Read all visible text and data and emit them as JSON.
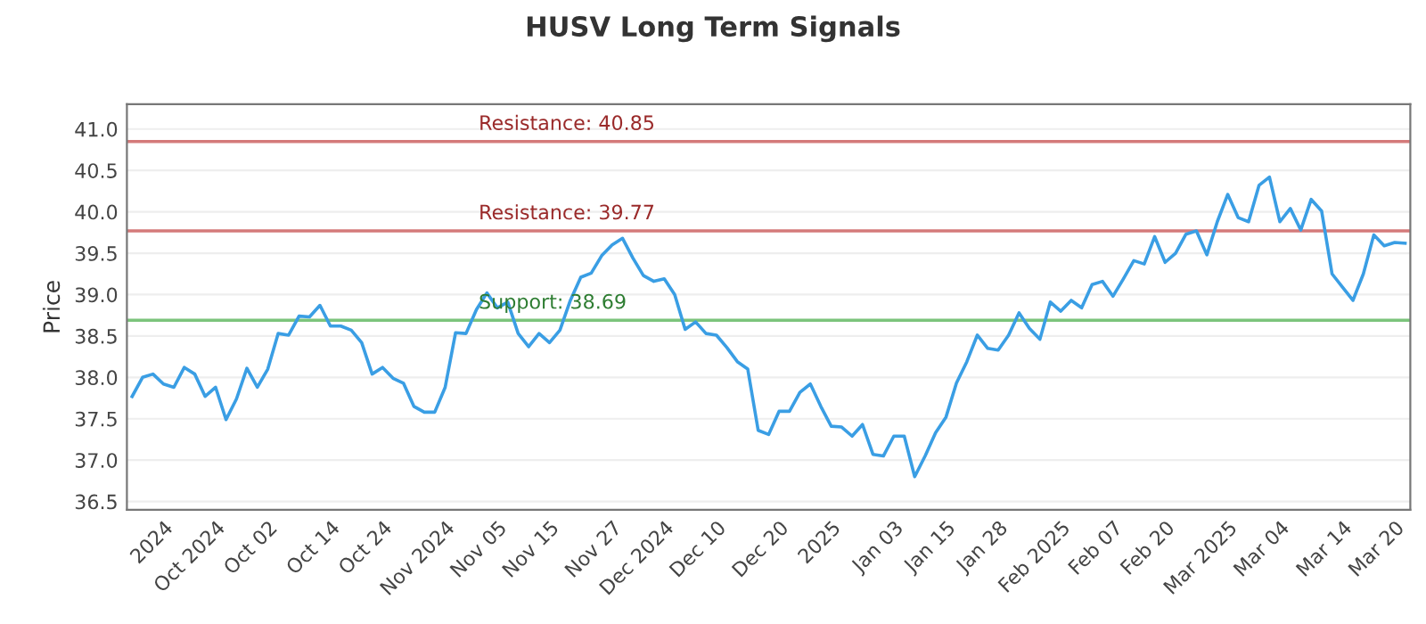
{
  "chart_data": {
    "type": "line",
    "title": "HUSV Long Term Signals",
    "ylabel": "Price",
    "categories": [
      null,
      null,
      null,
      "2024",
      null,
      null,
      null,
      null,
      "Oct 2024",
      null,
      null,
      null,
      null,
      "Oct 02",
      null,
      null,
      null,
      null,
      null,
      "Oct 14",
      null,
      null,
      null,
      null,
      "Oct 24",
      null,
      null,
      null,
      null,
      null,
      "Nov 2024",
      null,
      null,
      null,
      null,
      "Nov 05",
      null,
      null,
      null,
      null,
      "Nov 15",
      null,
      null,
      null,
      null,
      null,
      "Nov 27",
      null,
      null,
      null,
      null,
      "Dec 2024",
      null,
      null,
      null,
      null,
      "Dec 10",
      null,
      null,
      null,
      null,
      null,
      "Dec 20",
      null,
      null,
      null,
      null,
      "2025",
      null,
      null,
      null,
      null,
      null,
      "Jan 03",
      null,
      null,
      null,
      null,
      "Jan 15",
      null,
      null,
      null,
      null,
      "Jan 28",
      null,
      null,
      null,
      null,
      null,
      "Feb 2025",
      null,
      null,
      null,
      null,
      "Feb 07",
      null,
      null,
      null,
      null,
      "Feb 20",
      null,
      null,
      null,
      null,
      null,
      "Mar 2025",
      null,
      null,
      null,
      null,
      "Mar 04",
      null,
      null,
      null,
      null,
      null,
      "Mar 14",
      null,
      null,
      null,
      null,
      "Mar 20",
      null
    ],
    "series": [
      {
        "color": "#3a9ee4",
        "values": [
          37.77,
          38.0,
          38.04,
          37.92,
          37.88,
          38.12,
          38.04,
          37.77,
          37.88,
          37.49,
          37.74,
          38.11,
          37.88,
          38.1,
          38.53,
          38.51,
          38.74,
          38.73,
          38.87,
          38.62,
          38.62,
          38.57,
          38.42,
          38.04,
          38.12,
          37.99,
          37.93,
          37.65,
          37.58,
          37.58,
          37.88,
          38.54,
          38.53,
          38.82,
          39.02,
          38.84,
          38.91,
          38.53,
          38.37,
          38.53,
          38.42,
          38.57,
          38.93,
          39.21,
          39.26,
          39.47,
          39.6,
          39.68,
          39.44,
          39.23,
          39.16,
          39.19,
          39.0,
          38.58,
          38.67,
          38.53,
          38.51,
          38.36,
          38.19,
          38.1,
          37.36,
          37.31,
          37.59,
          37.59,
          37.82,
          37.92,
          37.65,
          37.41,
          37.4,
          37.29,
          37.43,
          37.07,
          37.05,
          37.29,
          37.29,
          36.8,
          37.05,
          37.33,
          37.52,
          37.93,
          38.19,
          38.51,
          38.35,
          38.33,
          38.51,
          38.78,
          38.59,
          38.46,
          38.91,
          38.8,
          38.93,
          38.84,
          39.12,
          39.16,
          38.98,
          39.19,
          39.41,
          39.37,
          39.7,
          39.39,
          39.5,
          39.73,
          39.77,
          39.48,
          39.88,
          40.21,
          39.93,
          39.88,
          40.32,
          40.42,
          39.88,
          40.04,
          39.78,
          40.15,
          40.01,
          39.25,
          39.09,
          38.93,
          39.25,
          39.72,
          39.59,
          39.63,
          39.62
        ]
      }
    ],
    "ylim": [
      36.4,
      41.3
    ],
    "yticks": [
      36.5,
      {
        "value": 37,
        "label": "37.0"
      },
      37.5,
      {
        "value": 38,
        "label": "38.0"
      },
      38.5,
      {
        "value": 39,
        "label": "39.0"
      },
      39.5,
      {
        "value": 40,
        "label": "40.0"
      },
      40.5,
      {
        "value": 41,
        "label": "41.0"
      }
    ],
    "ref_lines": [
      {
        "axis": "y",
        "value": 40.85,
        "label": "Resistance: 40.85",
        "color": "#d47a7a"
      },
      {
        "axis": "y",
        "value": 39.77,
        "label": "Resistance: 39.77",
        "color": "#d47a7a"
      },
      {
        "axis": "y",
        "value": 38.69,
        "label": "Support: 38.69",
        "color": "#7cc47c"
      }
    ],
    "grid": "y",
    "legend": false,
    "marker": "none",
    "line_style": "solid"
  }
}
